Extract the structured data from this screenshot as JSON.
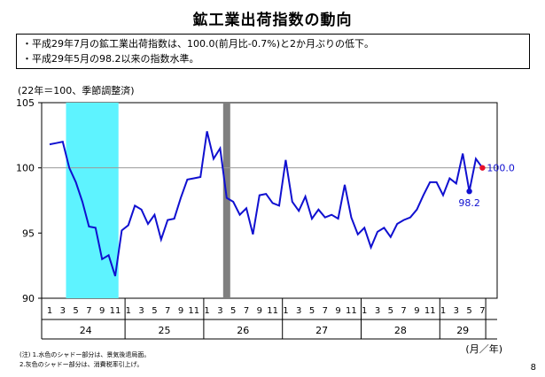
{
  "header": {
    "title": "鉱工業出荷指数の動向"
  },
  "summary": {
    "bullets": [
      "・平成29年7月の鉱工業出荷指数は、100.0(前月比-0.7%)と2か月ぶりの低下。",
      "・平成29年5月の98.2以来の指数水準。"
    ]
  },
  "axis_unit_label": "(22年＝100、季節調整済)",
  "fy_label": "(月／年)",
  "notes": [
    "(注) 1.水色のシャドー部分は、景気後退局面。",
    "      2.灰色のシャドー部分は、消費税率引上げ。"
  ],
  "page_number": "8",
  "colors": {
    "line": "#1010d0",
    "recession_shade": "#5ef3ff",
    "tax_shade": "#7f7f7f",
    "latest_point": "#e8102a",
    "low_point": "#1010d0",
    "reference_line": "#9a9a9a"
  },
  "chart_data": {
    "type": "line",
    "title": "鉱工業出荷指数の動向",
    "ylabel": "(22年＝100、季節調整済)",
    "xlabel": "(月／年)",
    "ylim": [
      90,
      105
    ],
    "yticks": [
      90,
      95,
      100,
      105
    ],
    "reference_value": 100,
    "month_tick_labels": [
      "1",
      "3",
      "5",
      "7",
      "9",
      "11"
    ],
    "years": [
      "24",
      "25",
      "26",
      "27",
      "28",
      "29"
    ],
    "last_year_months": [
      "1",
      "3",
      "5",
      "7"
    ],
    "series": [
      {
        "x": [
          "24-1",
          "24-2",
          "24-3",
          "24-4",
          "24-5",
          "24-6",
          "24-7",
          "24-8",
          "24-9",
          "24-10",
          "24-11",
          "24-12",
          "25-1",
          "25-2",
          "25-3",
          "25-4",
          "25-5",
          "25-6",
          "25-7",
          "25-8",
          "25-9",
          "25-10",
          "25-11",
          "25-12",
          "26-1",
          "26-2",
          "26-3",
          "26-4",
          "26-5",
          "26-6",
          "26-7",
          "26-8",
          "26-9",
          "26-10",
          "26-11",
          "26-12",
          "27-1",
          "27-2",
          "27-3",
          "27-4",
          "27-5",
          "27-6",
          "27-7",
          "27-8",
          "27-9",
          "27-10",
          "27-11",
          "27-12",
          "28-1",
          "28-2",
          "28-3",
          "28-4",
          "28-5",
          "28-6",
          "28-7",
          "28-8",
          "28-9",
          "28-10",
          "28-11",
          "28-12",
          "29-1",
          "29-2",
          "29-3",
          "29-4",
          "29-5",
          "29-6",
          "29-7"
        ],
        "values": [
          101.8,
          101.9,
          102.0,
          100.0,
          98.9,
          97.4,
          95.5,
          95.4,
          93.0,
          93.3,
          91.7,
          95.2,
          95.6,
          97.1,
          96.8,
          95.7,
          96.4,
          94.5,
          96.0,
          96.1,
          97.7,
          99.1,
          99.2,
          99.3,
          102.8,
          100.7,
          101.5,
          97.7,
          97.4,
          96.4,
          96.9,
          94.9,
          97.9,
          98.0,
          97.3,
          97.1,
          100.6,
          97.4,
          96.7,
          97.8,
          96.1,
          96.8,
          96.2,
          96.4,
          96.1,
          98.7,
          96.2,
          94.9,
          95.4,
          93.9,
          95.1,
          95.4,
          94.7,
          95.7,
          96.0,
          96.2,
          96.8,
          97.9,
          98.9,
          98.9,
          97.9,
          99.2,
          98.8,
          101.1,
          98.2,
          100.7,
          100.0
        ]
      }
    ],
    "shaded_periods": [
      {
        "type": "recession",
        "start": "24-4",
        "end": "24-11"
      },
      {
        "type": "consumption_tax_hike",
        "start": "26-4",
        "end": "26-4"
      }
    ],
    "annotations": [
      {
        "x": "29-5",
        "value": 98.2,
        "text": "98.2"
      },
      {
        "x": "29-7",
        "value": 100.0,
        "text": "100.0"
      }
    ]
  }
}
